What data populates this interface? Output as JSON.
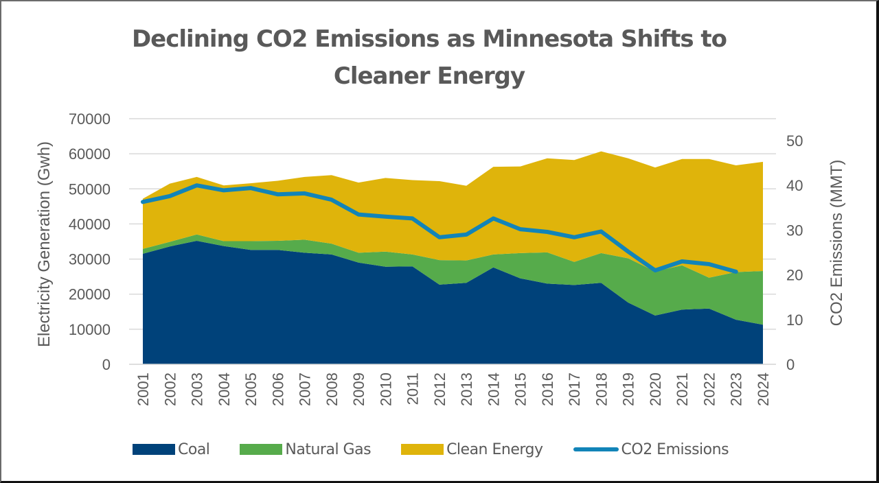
{
  "chart_data": {
    "type": "area",
    "title": "Declining CO2 Emissions as Minnesota Shifts to Cleaner Energy",
    "title_lines": [
      "Declining CO2 Emissions as Minnesota Shifts to",
      "Cleaner Energy"
    ],
    "xlabel": "",
    "ylabel": "Electricity Generation (Gwh)",
    "y2label": "CO2 Emissions (MMT)",
    "ylim": [
      0,
      70000
    ],
    "y2lim": [
      0,
      50
    ],
    "yticks": [
      "0",
      "10000",
      "20000",
      "30000",
      "40000",
      "50000",
      "60000",
      "70000"
    ],
    "y2ticks": [
      "0",
      "10",
      "20",
      "30",
      "40",
      "50"
    ],
    "grid": true,
    "legend_position": "bottom",
    "categories": [
      "2001",
      "2002",
      "2003",
      "2004",
      "2005",
      "2006",
      "2007",
      "2008",
      "2009",
      "2010",
      "2011",
      "2012",
      "2013",
      "2014",
      "2015",
      "2016",
      "2017",
      "2018",
      "2019",
      "2020",
      "2021",
      "2022",
      "2023",
      "2024"
    ],
    "series": [
      {
        "name": "Coal",
        "type": "stacked-area",
        "axis": "left",
        "color": "#00427a",
        "values": [
          31500,
          33600,
          35200,
          33700,
          32600,
          32600,
          31800,
          31300,
          29000,
          27800,
          27900,
          22700,
          23200,
          27600,
          24500,
          23000,
          22600,
          23200,
          17600,
          13900,
          15600,
          15900,
          12700,
          11300
        ]
      },
      {
        "name": "Natural Gas",
        "type": "stacked-area",
        "axis": "left",
        "color": "#56ab4b",
        "values": [
          1400,
          1300,
          1800,
          1400,
          2500,
          2600,
          3700,
          3100,
          2800,
          4300,
          3400,
          7000,
          6400,
          3700,
          7200,
          8900,
          6600,
          8500,
          12600,
          12600,
          12600,
          8800,
          13600,
          15300
        ]
      },
      {
        "name": "Clean Energy",
        "type": "stacked-area",
        "axis": "left",
        "color": "#dfb40b",
        "values": [
          14300,
          16600,
          16400,
          15900,
          16500,
          17100,
          17900,
          19500,
          20000,
          21000,
          21200,
          22500,
          21300,
          25000,
          24700,
          26800,
          29000,
          29000,
          28500,
          29600,
          30300,
          33800,
          30400,
          31100
        ]
      },
      {
        "name": "CO2 Emissions",
        "type": "line",
        "axis": "right",
        "color": "#1284b8",
        "values": [
          36.3,
          37.6,
          40.0,
          38.9,
          39.4,
          38.0,
          38.2,
          36.8,
          33.5,
          33.0,
          32.6,
          28.4,
          29.0,
          32.6,
          30.2,
          29.6,
          28.4,
          29.7,
          25.2,
          21.0,
          23.0,
          22.4,
          20.7,
          null
        ]
      }
    ],
    "legend": [
      {
        "label": "Coal",
        "kind": "area",
        "color": "#00427a"
      },
      {
        "label": "Natural Gas",
        "kind": "area",
        "color": "#56ab4b"
      },
      {
        "label": "Clean Energy",
        "kind": "area",
        "color": "#dfb40b"
      },
      {
        "label": "CO2 Emissions",
        "kind": "line",
        "color": "#1284b8"
      }
    ],
    "gridline_color": "#d9d9d9",
    "text_color": "#595959"
  }
}
